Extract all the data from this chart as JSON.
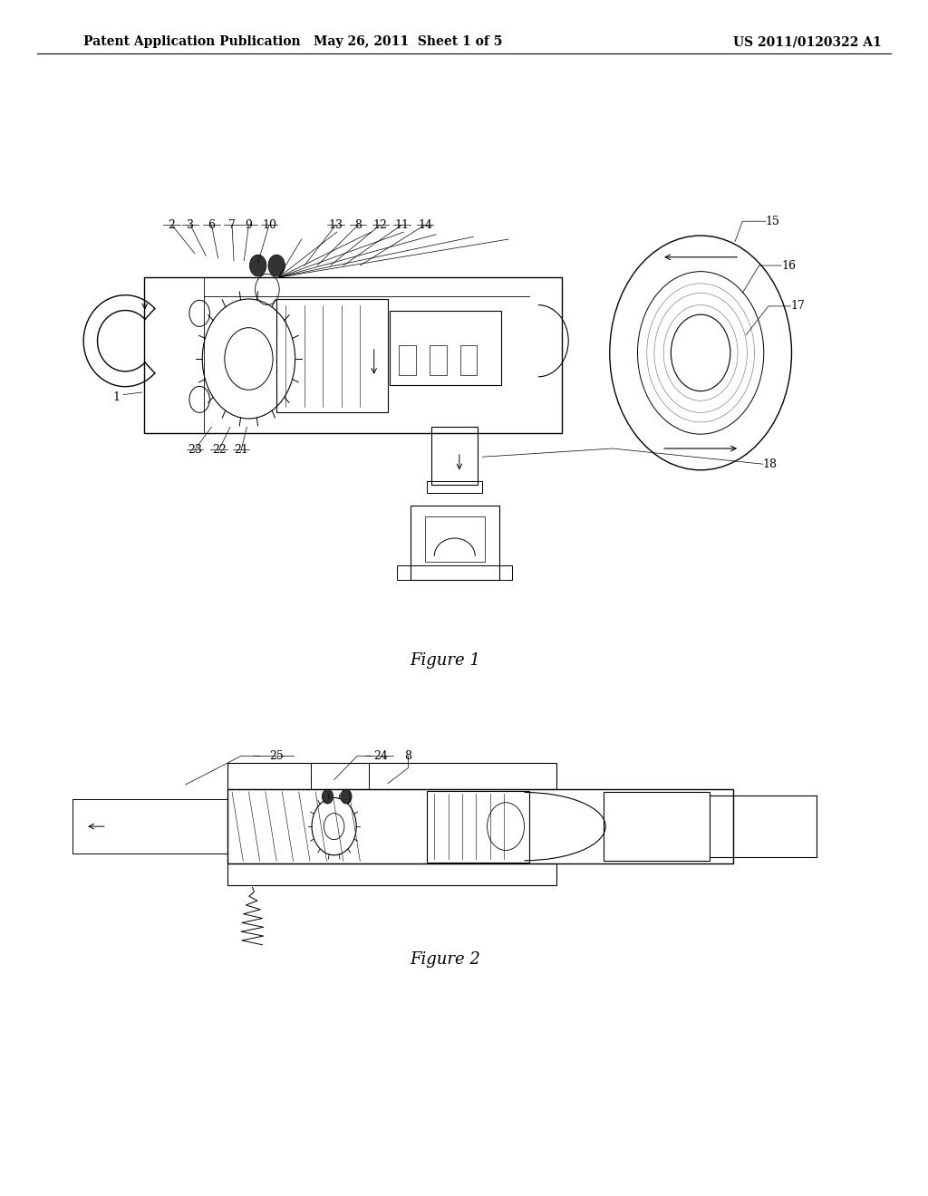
{
  "title_left": "Patent Application Publication",
  "title_mid": "May 26, 2011  Sheet 1 of 5",
  "title_right": "US 2011/0120322 A1",
  "figure1_caption": "Figure 1",
  "figure2_caption": "Figure 2",
  "bg_color": "#ffffff",
  "line_color": "#000000",
  "text_color": "#000000",
  "header_fontsize": 10,
  "caption_fontsize": 13,
  "label_fontsize": 9
}
